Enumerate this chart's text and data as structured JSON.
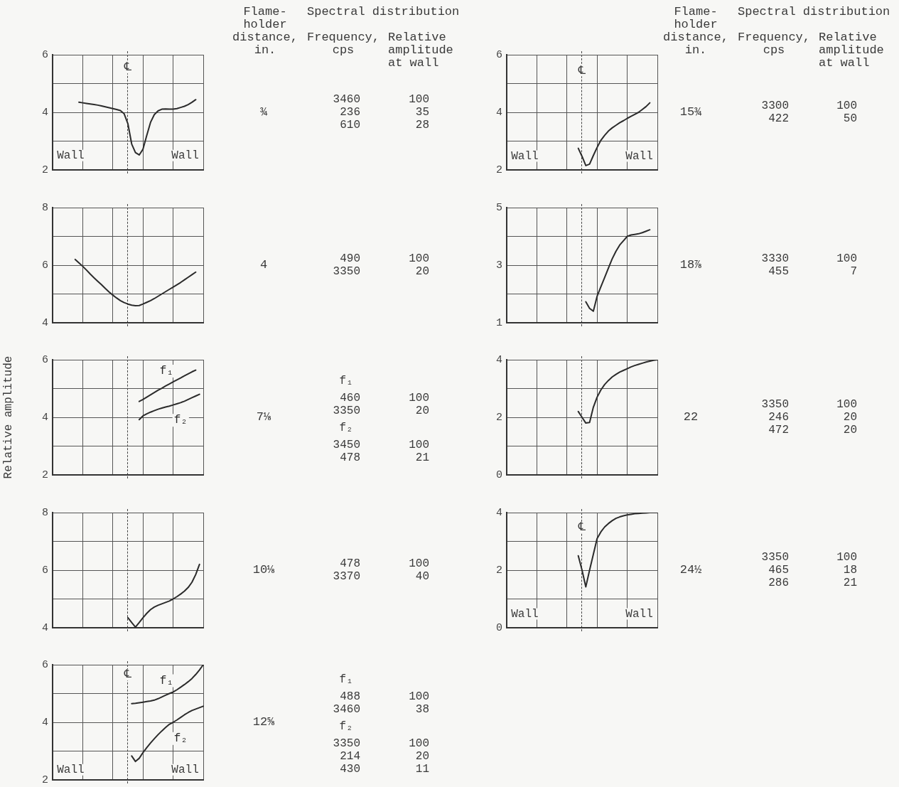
{
  "chart_data": [
    {
      "type": "other",
      "annotations": [
        "Flame-holder distance, in.",
        "Spectral distribution",
        "Frequency, cps",
        "Relative amplitude at wall"
      ]
    },
    {
      "type": "line",
      "categories": [
        null,
        null,
        null,
        null,
        null,
        null,
        null,
        null,
        null,
        null,
        null,
        null,
        null,
        null,
        null,
        null,
        null,
        null,
        null,
        null,
        null,
        null,
        null,
        null,
        null,
        null,
        null,
        null,
        null,
        null,
        null,
        null,
        null,
        null,
        null,
        null,
        null,
        null,
        null,
        null,
        null
      ],
      "values": [
        null,
        null,
        null,
        null,
        null,
        null,
        null,
        4.35,
        4.33,
        4.31,
        4.29,
        4.27,
        4.25,
        4.22,
        4.19,
        4.16,
        4.13,
        4.1,
        4.06,
        3.95,
        3.6,
        2.9,
        2.6,
        2.52,
        2.72,
        3.2,
        3.65,
        3.92,
        4.05,
        4.11,
        4.12,
        4.11,
        4.11,
        4.13,
        4.17,
        4.21,
        4.27,
        4.35,
        4.44,
        null,
        null
      ],
      "color": "#2b2b2b",
      "ylim": [
        2,
        6
      ],
      "yticks": [
        2,
        {
          "value": 3,
          "label": null
        },
        4,
        {
          "value": 5,
          "label": null
        },
        6
      ],
      "tick_labels": "y",
      "grid": true,
      "annotations": [
        {
          "text": "℄",
          "y": 5.55
        },
        {
          "text": "Wall",
          "y": 2.5
        },
        {
          "text": "Wall",
          "y": 2.5
        },
        "¾",
        "3460 100",
        "236 35",
        "610 28"
      ]
    },
    {
      "type": "line",
      "categories": [
        null,
        null,
        null,
        null,
        null,
        null,
        null,
        null,
        null,
        null,
        null,
        null,
        null,
        null,
        null,
        null,
        null,
        null,
        null,
        null,
        null,
        null,
        null,
        null,
        null,
        null,
        null,
        null,
        null,
        null,
        null,
        null,
        null,
        null,
        null,
        null,
        null,
        null,
        null,
        null,
        null
      ],
      "values": [
        null,
        null,
        null,
        null,
        null,
        null,
        6.2,
        6.08,
        5.96,
        5.83,
        5.69,
        5.56,
        5.44,
        5.32,
        5.19,
        5.07,
        4.96,
        4.86,
        4.77,
        4.7,
        4.65,
        4.61,
        4.59,
        4.6,
        4.65,
        4.71,
        4.77,
        4.84,
        4.92,
        5.0,
        5.08,
        5.16,
        5.24,
        5.32,
        5.4,
        5.49,
        5.58,
        5.67,
        5.76,
        null,
        null
      ],
      "color": "#2b2b2b",
      "ylim": [
        4,
        8
      ],
      "yticks": [
        4,
        {
          "value": 5,
          "label": null
        },
        6,
        {
          "value": 7,
          "label": null
        },
        8
      ],
      "tick_labels": "y",
      "grid": true,
      "annotations": [
        "4",
        "490 100",
        "3350 20"
      ]
    },
    {
      "type": "line",
      "ylabel": "Relative amplitude",
      "categories": [
        null,
        null,
        null,
        null,
        null,
        null,
        null,
        null,
        null,
        null,
        null,
        null,
        null,
        null,
        null,
        null,
        null,
        null,
        null,
        null,
        null,
        null,
        null,
        null,
        null,
        null,
        null,
        null,
        null,
        null,
        null,
        null,
        null,
        null,
        null,
        null,
        null,
        null,
        null,
        null,
        null
      ],
      "series": [
        {
          "name": "f₁",
          "color": "#2b2b2b",
          "values": [
            null,
            null,
            null,
            null,
            null,
            null,
            null,
            null,
            null,
            null,
            null,
            null,
            null,
            null,
            null,
            null,
            null,
            null,
            null,
            null,
            null,
            null,
            null,
            4.55,
            4.62,
            4.7,
            4.78,
            4.86,
            4.94,
            5.01,
            5.09,
            5.16,
            5.23,
            5.3,
            5.37,
            5.44,
            5.51,
            5.58,
            5.64,
            null,
            null
          ]
        },
        {
          "name": "f₂",
          "color": "#2b2b2b",
          "values": [
            null,
            null,
            null,
            null,
            null,
            null,
            null,
            null,
            null,
            null,
            null,
            null,
            null,
            null,
            null,
            null,
            null,
            null,
            null,
            null,
            null,
            null,
            null,
            3.92,
            4.05,
            4.12,
            4.18,
            4.23,
            4.28,
            4.32,
            4.36,
            4.39,
            4.43,
            4.47,
            4.51,
            4.56,
            4.62,
            4.68,
            4.74,
            4.8,
            null
          ]
        }
      ],
      "ylim": [
        2,
        6
      ],
      "yticks": [
        2,
        {
          "value": 3,
          "label": null
        },
        4,
        {
          "value": 5,
          "label": null
        },
        6
      ],
      "tick_labels": "y",
      "grid": true,
      "annotations": [
        "7⅛",
        "f₁",
        "460 100",
        "3350 20",
        "f₂",
        "3450 100",
        "478 21"
      ]
    },
    {
      "type": "line",
      "categories": [
        null,
        null,
        null,
        null,
        null,
        null,
        null,
        null,
        null,
        null,
        null,
        null,
        null,
        null,
        null,
        null,
        null,
        null,
        null,
        null,
        null,
        null,
        null,
        null,
        null,
        null,
        null,
        null,
        null,
        null,
        null,
        null,
        null,
        null,
        null,
        null,
        null,
        null,
        null,
        null,
        null
      ],
      "values": [
        null,
        null,
        null,
        null,
        null,
        null,
        null,
        null,
        null,
        null,
        null,
        null,
        null,
        null,
        null,
        null,
        null,
        null,
        null,
        null,
        4.35,
        4.18,
        4.02,
        4.18,
        4.35,
        4.5,
        4.63,
        4.72,
        4.78,
        4.83,
        4.88,
        4.93,
        5.0,
        5.08,
        5.17,
        5.27,
        5.4,
        5.58,
        5.85,
        6.2,
        null
      ],
      "color": "#2b2b2b",
      "ylim": [
        4,
        8
      ],
      "yticks": [
        4,
        {
          "value": 5,
          "label": null
        },
        6,
        {
          "value": 7,
          "label": null
        },
        8
      ],
      "tick_labels": "y",
      "grid": true,
      "annotations": [
        "10⅛",
        "478 100",
        "3370 40"
      ]
    },
    {
      "type": "line",
      "categories": [
        null,
        null,
        null,
        null,
        null,
        null,
        null,
        null,
        null,
        null,
        null,
        null,
        null,
        null,
        null,
        null,
        null,
        null,
        null,
        null,
        null,
        null,
        null,
        null,
        null,
        null,
        null,
        null,
        null,
        null,
        null,
        null,
        null,
        null,
        null,
        null,
        null,
        null,
        null,
        null,
        null
      ],
      "series": [
        {
          "name": "f₁",
          "color": "#2b2b2b",
          "values": [
            null,
            null,
            null,
            null,
            null,
            null,
            null,
            null,
            null,
            null,
            null,
            null,
            null,
            null,
            null,
            null,
            null,
            null,
            null,
            null,
            null,
            4.65,
            4.66,
            4.68,
            4.7,
            4.72,
            4.74,
            4.77,
            4.82,
            4.88,
            4.94,
            5.0,
            5.05,
            5.13,
            5.22,
            5.31,
            5.41,
            5.52,
            5.66,
            5.82,
            6.0
          ]
        },
        {
          "name": "f₂",
          "color": "#2b2b2b",
          "values": [
            null,
            null,
            null,
            null,
            null,
            null,
            null,
            null,
            null,
            null,
            null,
            null,
            null,
            null,
            null,
            null,
            null,
            null,
            null,
            null,
            null,
            2.83,
            2.64,
            2.75,
            2.95,
            3.12,
            3.28,
            3.43,
            3.57,
            3.7,
            3.82,
            3.93,
            4.0,
            4.08,
            4.17,
            4.26,
            4.34,
            4.41,
            4.46,
            4.51,
            4.56
          ]
        }
      ],
      "ylim": [
        2,
        6
      ],
      "yticks": [
        2,
        {
          "value": 3,
          "label": null
        },
        4,
        {
          "value": 5,
          "label": null
        },
        6
      ],
      "tick_labels": "y",
      "grid": true,
      "annotations": [
        {
          "text": "℄",
          "y": 5.65
        },
        {
          "text": "Wall",
          "y": 2.35
        },
        {
          "text": "Wall",
          "y": 2.35
        },
        "12⅝",
        "f₁",
        "488 100",
        "3460 38",
        "f₂",
        "3350 100",
        "214 20",
        "430 11"
      ]
    },
    {
      "type": "other",
      "annotations": [
        "Flame-holder distance, in.",
        "Spectral distribution",
        "Frequency, cps",
        "Relative amplitude at wall"
      ]
    },
    {
      "type": "line",
      "categories": [
        null,
        null,
        null,
        null,
        null,
        null,
        null,
        null,
        null,
        null,
        null,
        null,
        null,
        null,
        null,
        null,
        null,
        null,
        null,
        null,
        null,
        null,
        null,
        null,
        null,
        null,
        null,
        null,
        null,
        null,
        null,
        null,
        null,
        null,
        null,
        null,
        null,
        null,
        null,
        null,
        null
      ],
      "values": [
        null,
        null,
        null,
        null,
        null,
        null,
        null,
        null,
        null,
        null,
        null,
        null,
        null,
        null,
        null,
        null,
        null,
        null,
        null,
        2.75,
        2.47,
        2.15,
        2.2,
        2.5,
        2.78,
        3.03,
        3.2,
        3.35,
        3.46,
        3.55,
        3.64,
        3.71,
        3.79,
        3.86,
        3.93,
        4.0,
        4.1,
        4.2,
        4.33,
        null,
        null
      ],
      "color": "#2b2b2b",
      "ylim": [
        2,
        6
      ],
      "yticks": [
        2,
        {
          "value": 3,
          "label": null
        },
        4,
        {
          "value": 5,
          "label": null
        },
        6
      ],
      "tick_labels": "y",
      "grid": true,
      "annotations": [
        {
          "text": "℄",
          "y": 5.45
        },
        {
          "text": "Wall",
          "y": 2.48
        },
        {
          "text": "Wall",
          "y": 2.48
        },
        "15¾",
        "3300 100",
        "422 50"
      ]
    },
    {
      "type": "line",
      "categories": [
        null,
        null,
        null,
        null,
        null,
        null,
        null,
        null,
        null,
        null,
        null,
        null,
        null,
        null,
        null,
        null,
        null,
        null,
        null,
        null,
        null,
        null,
        null,
        null,
        null,
        null,
        null,
        null,
        null,
        null,
        null,
        null,
        null,
        null,
        null,
        null,
        null,
        null,
        null,
        null,
        null
      ],
      "values": [
        null,
        null,
        null,
        null,
        null,
        null,
        null,
        null,
        null,
        null,
        null,
        null,
        null,
        null,
        null,
        null,
        null,
        null,
        null,
        null,
        null,
        1.73,
        1.5,
        1.4,
        1.92,
        2.25,
        2.57,
        2.9,
        3.22,
        3.48,
        3.7,
        3.85,
        4.0,
        4.05,
        4.07,
        4.09,
        4.13,
        4.18,
        4.23,
        null,
        null
      ],
      "color": "#2b2b2b",
      "ylim": [
        1,
        5
      ],
      "yticks": [
        1,
        {
          "value": 2,
          "label": null
        },
        3,
        {
          "value": 4,
          "label": null
        },
        5
      ],
      "tick_labels": "y",
      "grid": true,
      "annotations": [
        "18⅞",
        "3330 100",
        "455 7"
      ]
    },
    {
      "type": "line",
      "categories": [
        null,
        null,
        null,
        null,
        null,
        null,
        null,
        null,
        null,
        null,
        null,
        null,
        null,
        null,
        null,
        null,
        null,
        null,
        null,
        null,
        null,
        null,
        null,
        null,
        null,
        null,
        null,
        null,
        null,
        null,
        null,
        null,
        null,
        null,
        null,
        null,
        null,
        null,
        null,
        null,
        null
      ],
      "values": [
        null,
        null,
        null,
        null,
        null,
        null,
        null,
        null,
        null,
        null,
        null,
        null,
        null,
        null,
        null,
        null,
        null,
        null,
        null,
        2.2,
        2.0,
        1.8,
        1.82,
        2.35,
        2.7,
        2.95,
        3.14,
        3.28,
        3.4,
        3.49,
        3.57,
        3.63,
        3.69,
        3.75,
        3.8,
        3.84,
        3.88,
        3.92,
        3.95,
        3.98,
        4.0
      ],
      "color": "#2b2b2b",
      "ylim": [
        0,
        4
      ],
      "yticks": [
        0,
        {
          "value": 1,
          "label": null
        },
        2,
        {
          "value": 3,
          "label": null
        },
        4
      ],
      "tick_labels": "y",
      "grid": true,
      "annotations": [
        "22",
        "3350 100",
        "246 20",
        "472 20"
      ]
    },
    {
      "type": "line",
      "categories": [
        null,
        null,
        null,
        null,
        null,
        null,
        null,
        null,
        null,
        null,
        null,
        null,
        null,
        null,
        null,
        null,
        null,
        null,
        null,
        null,
        null,
        null,
        null,
        null,
        null,
        null,
        null,
        null,
        null,
        null,
        null,
        null,
        null,
        null,
        null,
        null,
        null,
        null,
        null,
        null,
        null
      ],
      "values": [
        null,
        null,
        null,
        null,
        null,
        null,
        null,
        null,
        null,
        null,
        null,
        null,
        null,
        null,
        null,
        null,
        null,
        null,
        null,
        2.5,
        2.0,
        1.42,
        2.0,
        2.55,
        3.1,
        3.33,
        3.5,
        3.62,
        3.72,
        3.8,
        3.85,
        3.89,
        3.92,
        3.94,
        3.96,
        3.97,
        3.98,
        3.99,
        4.0,
        4.0,
        4.0
      ],
      "color": "#2b2b2b",
      "ylim": [
        0,
        4
      ],
      "yticks": [
        0,
        {
          "value": 1,
          "label": null
        },
        2,
        {
          "value": 3,
          "label": null
        },
        4
      ],
      "tick_labels": "y",
      "grid": true,
      "annotations": [
        {
          "text": "℄",
          "y": 3.48
        },
        {
          "text": "Wall",
          "y": 0.48
        },
        {
          "text": "Wall",
          "y": 0.48
        },
        "24½",
        "3350 100",
        "465 18",
        "286 21"
      ]
    }
  ]
}
